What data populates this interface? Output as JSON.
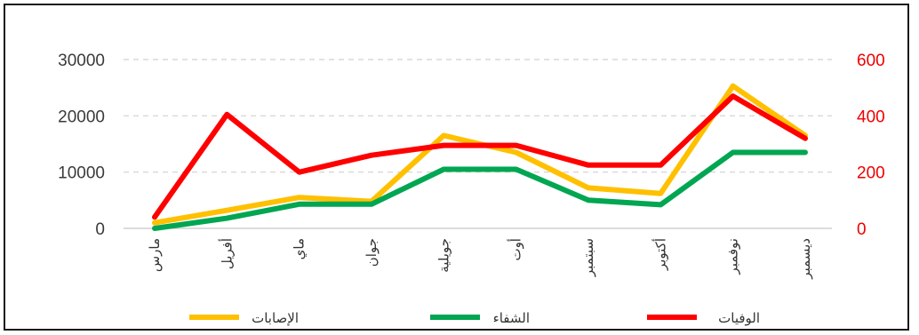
{
  "chart_data": {
    "type": "line",
    "categories": [
      "مارس",
      "أفريل",
      "ماي",
      "جوان",
      "جويلية",
      "أوت",
      "سبتمبر",
      "أكتوبر",
      "نوفمبر",
      "ديسمبر"
    ],
    "series": [
      {
        "name": "الإصابات",
        "axis": "left",
        "color": "#FFC000",
        "values": [
          1000,
          3200,
          5500,
          4800,
          16500,
          13500,
          7200,
          6200,
          25300,
          16500
        ]
      },
      {
        "name": "الشفاء",
        "axis": "left",
        "color": "#00A651",
        "values": [
          0,
          1800,
          4300,
          4300,
          10500,
          10500,
          5000,
          4200,
          13500,
          13500
        ]
      },
      {
        "name": "الوفيات",
        "axis": "right",
        "color": "#FF0000",
        "values": [
          40,
          405,
          200,
          260,
          295,
          295,
          225,
          225,
          470,
          320
        ]
      }
    ],
    "y_left": {
      "min": 0,
      "max": 30000,
      "ticks": [
        0,
        10000,
        20000,
        30000
      ]
    },
    "y_right": {
      "min": 0,
      "max": 600,
      "ticks": [
        0,
        200,
        400,
        600
      ],
      "color": "#EE0000"
    },
    "grid": true,
    "legend_position": "bottom"
  }
}
